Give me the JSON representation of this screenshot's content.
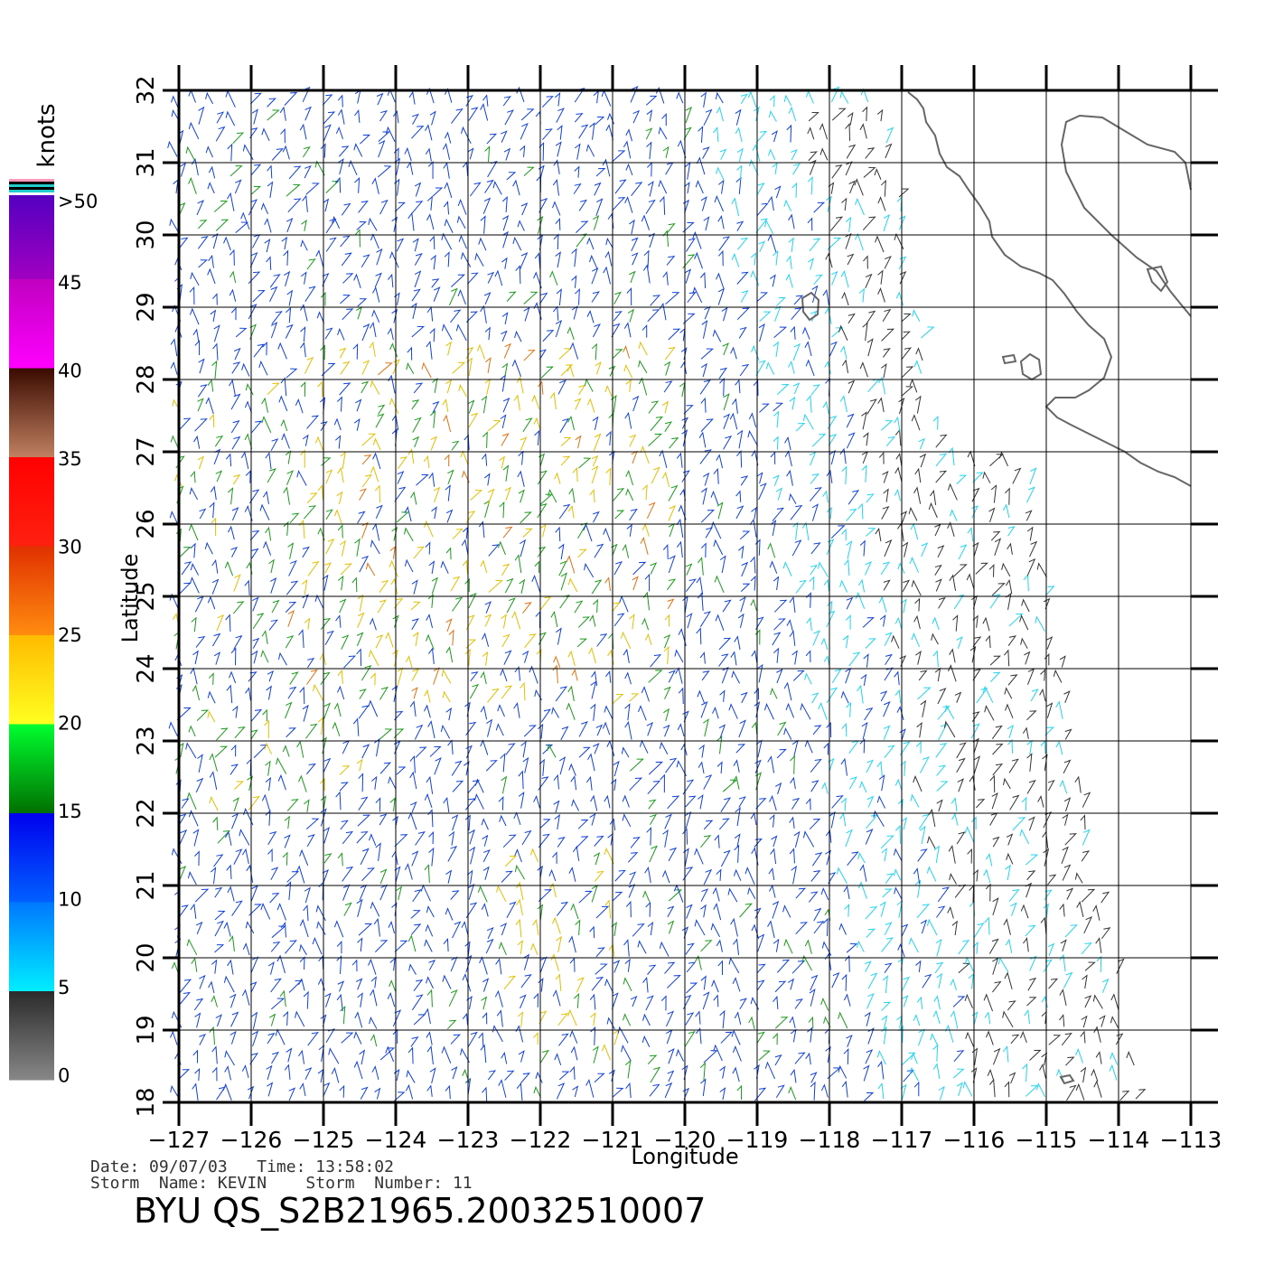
{
  "map": {
    "xlabel": "Longitude",
    "ylabel": "Latitude",
    "lon_ticks": [
      "-127",
      "-126",
      "-125",
      "-124",
      "-123",
      "-122",
      "-121",
      "-120",
      "-119",
      "-118",
      "-117",
      "-116",
      "-115",
      "-114",
      "-113"
    ],
    "lat_ticks": [
      "18",
      "19",
      "20",
      "21",
      "22",
      "23",
      "24",
      "25",
      "26",
      "27",
      "28",
      "29",
      "30",
      "31",
      "32"
    ],
    "lon_range": [
      -127,
      -113
    ],
    "lat_range": [
      18,
      32
    ],
    "grid": true
  },
  "legend": {
    "unit_label": "knots",
    "labels": [
      ">50",
      "45",
      "40",
      "35",
      "30",
      "25",
      "20",
      "15",
      "10",
      "5",
      "0"
    ],
    "bins": [
      {
        "from": 0,
        "to": 5,
        "colors": [
          "#888888",
          "#2a2a2a"
        ]
      },
      {
        "from": 5,
        "to": 10,
        "colors": [
          "#00eeff",
          "#0077ff"
        ]
      },
      {
        "from": 10,
        "to": 15,
        "colors": [
          "#0060ff",
          "#0000ee"
        ]
      },
      {
        "from": 15,
        "to": 20,
        "colors": [
          "#007000",
          "#00ff30"
        ]
      },
      {
        "from": 20,
        "to": 25,
        "colors": [
          "#ffff20",
          "#ffbb00"
        ]
      },
      {
        "from": 25,
        "to": 30,
        "colors": [
          "#ff8c10",
          "#e03000"
        ]
      },
      {
        "from": 30,
        "to": 35,
        "colors": [
          "#ff2010",
          "#ff0000"
        ]
      },
      {
        "from": 35,
        "to": 40,
        "colors": [
          "#c08060",
          "#3a0a00"
        ]
      },
      {
        "from": 40,
        "to": 45,
        "colors": [
          "#ff00ff",
          "#c000c0"
        ]
      },
      {
        "from": 45,
        "to": 50,
        "colors": [
          "#a000c0",
          "#5000c0"
        ]
      }
    ]
  },
  "header": {
    "date_line": "Date: 09/07/03   Time: 13:58:02",
    "storm_line": "Storm  Name: KEVIN    Storm  Number: 11",
    "title": "BYU  QS_S2B21965.20032510007"
  },
  "wind_colors": {
    "calm": "#333333",
    "light": "#22d4ee",
    "moderate": "#1040d8",
    "fresh": "#1a9a1a",
    "strong": "#e0c000",
    "gale": "#e07010"
  },
  "coast_color": "#666666"
}
